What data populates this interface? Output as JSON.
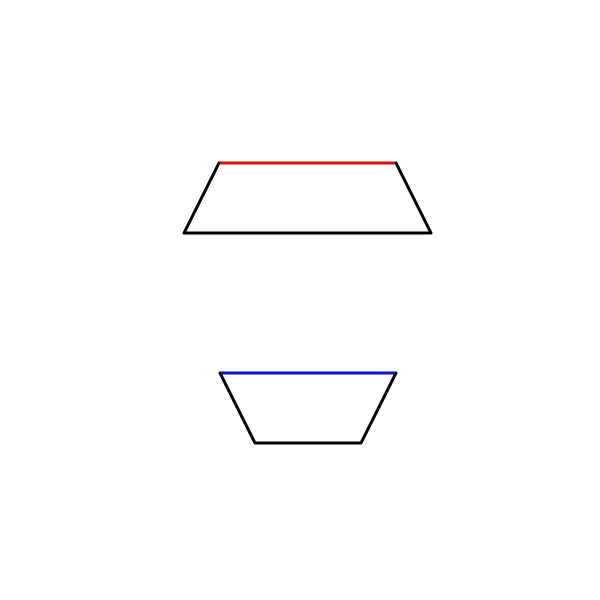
{
  "diagram": {
    "background": "#ffffff",
    "shapes": [
      {
        "kind": "trapezoid",
        "orientation": "wide-bottom",
        "outline_color": "#000000",
        "highlight_edge": "top",
        "highlight_color": "#e01010"
      },
      {
        "kind": "trapezoid",
        "orientation": "wide-top",
        "outline_color": "#000000",
        "highlight_edge": "top",
        "highlight_color": "#1010d0"
      }
    ]
  }
}
